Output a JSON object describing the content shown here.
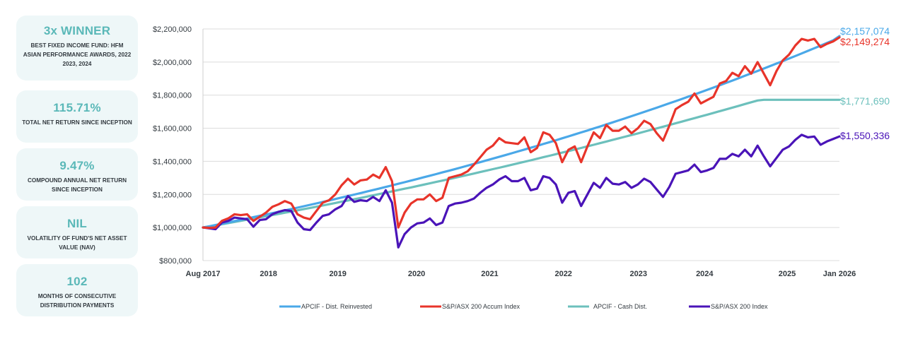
{
  "cards": [
    {
      "big": "3x WINNER",
      "small": "BEST FIXED INCOME FUND: HFM ASIAN PERFORMANCE AWARDS, 2022 2023, 2024"
    },
    {
      "big": "115.71%",
      "small": "TOTAL NET RETURN SINCE INCEPTION"
    },
    {
      "big": "9.47%",
      "small": "COMPOUND ANNUAL NET RETURN SINCE INCEPTION"
    },
    {
      "big": "NIL",
      "small": "VOLATILITY OF FUND'S NET ASSET VALUE (NAV)"
    },
    {
      "big": "102",
      "small": "MONTHS OF CONSECUTIVE DISTRIBUTION PAYMENTS"
    }
  ],
  "colors": {
    "card_bg": "#eef7f8",
    "card_accent": "#5ab8b8",
    "apcif_reinvested": "#4aa8e8",
    "sp_asx_accum": "#e8342a",
    "apcif_cash": "#6cc0bc",
    "sp_asx_index": "#4a14b8"
  },
  "chart_data": {
    "type": "line",
    "title": "",
    "xlabel": "",
    "ylabel": "",
    "ylim": [
      800000,
      2200000
    ],
    "yticks": [
      800000,
      1000000,
      1200000,
      1400000,
      1600000,
      1800000,
      2000000,
      2200000
    ],
    "ytick_labels": [
      "$800,000",
      "$1,000,000",
      "$1,200,000",
      "$1,400,000",
      "$1,600,000",
      "$1,800,000",
      "$2,000,000",
      "$2,200,000"
    ],
    "x_start": "Aug 2017",
    "x_end": "Jan 2026",
    "months": 102,
    "xtick_labels": [
      {
        "label": "Aug 2017",
        "month_index": 0
      },
      {
        "label": "2018",
        "month_index": 10.4
      },
      {
        "label": "2019",
        "month_index": 21.4
      },
      {
        "label": "2020",
        "month_index": 33.9
      },
      {
        "label": "2021",
        "month_index": 45.5
      },
      {
        "label": "2022",
        "month_index": 57.2
      },
      {
        "label": "2023",
        "month_index": 69.1
      },
      {
        "label": "2024",
        "month_index": 79.6
      },
      {
        "label": "2025",
        "month_index": 92.7
      },
      {
        "label": "Jan 2026",
        "month_index": 101
      }
    ],
    "grid": true,
    "legend_position": "bottom",
    "series": [
      {
        "name": "APCIF - Dist. Reinvested",
        "key": "apcif_reinvested",
        "end_label": "$2,157,074",
        "end_value": 2157074,
        "values": [
          1000000,
          1007600,
          1015200,
          1022900,
          1030700,
          1038500,
          1046400,
          1054300,
          1062300,
          1070400,
          1078500,
          1086700,
          1095000,
          1103300,
          1111700,
          1120100,
          1128600,
          1137200,
          1145800,
          1154500,
          1163300,
          1172100,
          1181000,
          1190000,
          1199000,
          1208100,
          1217300,
          1226600,
          1235900,
          1245300,
          1254700,
          1264300,
          1273900,
          1283500,
          1293300,
          1303100,
          1313000,
          1323000,
          1333000,
          1343100,
          1353300,
          1363600,
          1374000,
          1384400,
          1394900,
          1405500,
          1416200,
          1426900,
          1437800,
          1448700,
          1459700,
          1470800,
          1482000,
          1493200,
          1504600,
          1516000,
          1527500,
          1539100,
          1550800,
          1562600,
          1574500,
          1586400,
          1598500,
          1610600,
          1622900,
          1635200,
          1647600,
          1660100,
          1672800,
          1685500,
          1698300,
          1711200,
          1724200,
          1737300,
          1750500,
          1763800,
          1777200,
          1790700,
          1804300,
          1818000,
          1831800,
          1845700,
          1859700,
          1873800,
          1888100,
          1902400,
          1916900,
          1931400,
          1946100,
          1960900,
          1975800,
          1990800,
          2005900,
          2021100,
          2036500,
          2052000,
          2067600,
          2083300,
          2099100,
          2115100,
          2131100,
          2157074
        ]
      },
      {
        "name": "S&P/ASX 200 Accum Index",
        "key": "sp_asx_accum",
        "end_label": "$2,149,274",
        "end_value": 2149274,
        "values": [
          1000000,
          998000,
          1000000,
          1040000,
          1055000,
          1080000,
          1075000,
          1080000,
          1040000,
          1065000,
          1090000,
          1125000,
          1140000,
          1160000,
          1145000,
          1080000,
          1060000,
          1050000,
          1100000,
          1150000,
          1165000,
          1200000,
          1255000,
          1295000,
          1260000,
          1285000,
          1290000,
          1320000,
          1300000,
          1365000,
          1280000,
          1000000,
          1090000,
          1145000,
          1170000,
          1170000,
          1200000,
          1160000,
          1180000,
          1300000,
          1310000,
          1320000,
          1340000,
          1380000,
          1425000,
          1470000,
          1495000,
          1540000,
          1515000,
          1510000,
          1505000,
          1545000,
          1455000,
          1480000,
          1575000,
          1560000,
          1510000,
          1395000,
          1470000,
          1490000,
          1395000,
          1490000,
          1575000,
          1540000,
          1620000,
          1585000,
          1585000,
          1610000,
          1570000,
          1600000,
          1645000,
          1625000,
          1570000,
          1525000,
          1615000,
          1715000,
          1740000,
          1760000,
          1810000,
          1750000,
          1770000,
          1790000,
          1870000,
          1885000,
          1935000,
          1915000,
          1975000,
          1930000,
          2000000,
          1930000,
          1860000,
          1945000,
          2010000,
          2045000,
          2100000,
          2140000,
          2130000,
          2140000,
          2090000,
          2110000,
          2125000,
          2149274
        ]
      },
      {
        "name": "APCIF - Cash Dist.",
        "key": "apcif_cash",
        "end_label": "$1,771,690",
        "end_value": 1771690,
        "values": [
          1000000,
          1006600,
          1013300,
          1020000,
          1026800,
          1033500,
          1040400,
          1047200,
          1054100,
          1061100,
          1068100,
          1075100,
          1082200,
          1089400,
          1096600,
          1103800,
          1111100,
          1118400,
          1125800,
          1133200,
          1140700,
          1148200,
          1155800,
          1163400,
          1171100,
          1178800,
          1186600,
          1194400,
          1202300,
          1210200,
          1218200,
          1226200,
          1234300,
          1242400,
          1250600,
          1258800,
          1267100,
          1275400,
          1283800,
          1292200,
          1300700,
          1309200,
          1317800,
          1326400,
          1335100,
          1343800,
          1352600,
          1361400,
          1370300,
          1379200,
          1388200,
          1397200,
          1406300,
          1415500,
          1424700,
          1433900,
          1443200,
          1452600,
          1462000,
          1471500,
          1481000,
          1490500,
          1500100,
          1509800,
          1519500,
          1529300,
          1539100,
          1549000,
          1558900,
          1568900,
          1578900,
          1589000,
          1599100,
          1609300,
          1619500,
          1629800,
          1640100,
          1650500,
          1660900,
          1671400,
          1681900,
          1692500,
          1703100,
          1713800,
          1724500,
          1735300,
          1746100,
          1757000,
          1767800,
          1771690,
          1771690,
          1771690,
          1771690,
          1771690,
          1771690,
          1771690,
          1771690,
          1771690,
          1771690,
          1771690,
          1771690,
          1771690
        ]
      },
      {
        "name": "S&P/ASX 200 Index",
        "key": "sp_asx_index",
        "end_label": "$1,550,336",
        "end_value": 1550336,
        "values": [
          1000000,
          995000,
          990000,
          1030000,
          1040000,
          1060000,
          1055000,
          1050000,
          1005000,
          1045000,
          1050000,
          1080000,
          1095000,
          1105000,
          1100000,
          1030000,
          990000,
          985000,
          1030000,
          1070000,
          1080000,
          1110000,
          1130000,
          1190000,
          1155000,
          1165000,
          1160000,
          1185000,
          1160000,
          1225000,
          1150000,
          880000,
          960000,
          1000000,
          1025000,
          1030000,
          1055000,
          1015000,
          1030000,
          1130000,
          1145000,
          1150000,
          1160000,
          1175000,
          1210000,
          1240000,
          1260000,
          1290000,
          1310000,
          1280000,
          1280000,
          1300000,
          1225000,
          1235000,
          1310000,
          1300000,
          1260000,
          1150000,
          1210000,
          1220000,
          1130000,
          1200000,
          1270000,
          1240000,
          1300000,
          1265000,
          1260000,
          1275000,
          1240000,
          1260000,
          1295000,
          1275000,
          1230000,
          1185000,
          1245000,
          1325000,
          1335000,
          1345000,
          1380000,
          1335000,
          1345000,
          1360000,
          1415000,
          1415000,
          1445000,
          1430000,
          1470000,
          1430000,
          1495000,
          1430000,
          1370000,
          1420000,
          1470000,
          1490000,
          1530000,
          1560000,
          1545000,
          1550000,
          1500000,
          1520000,
          1535000,
          1550336
        ]
      }
    ]
  }
}
